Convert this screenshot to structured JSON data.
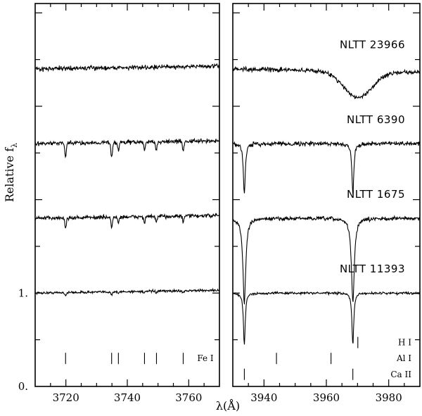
{
  "chart_data": {
    "type": "line",
    "xlabel": "λ(Å)",
    "ylabel": "Relative f_λ",
    "ylabel_main": "Relative f",
    "ylabel_sub": "λ",
    "ylim": [
      0,
      4.1
    ],
    "y_ticks": [
      {
        "value": 0,
        "label": "0."
      },
      {
        "value": 1,
        "label": "1."
      }
    ],
    "y_minor_ticks": [
      0.5,
      1.5,
      2.0,
      2.5,
      3.0,
      3.5,
      4.0
    ],
    "panels": [
      {
        "xlim": [
          3710,
          3770
        ],
        "x_ticks": [
          3720,
          3740,
          3760
        ],
        "x_tick_labels": [
          "3720",
          "3740",
          "3760"
        ],
        "x_minor_step": 5,
        "line_markers": [
          {
            "label": "Fe I",
            "y": 0.3,
            "wavelengths": [
              3719.9,
              3734.9,
              3737.1,
              3745.6,
              3749.5,
              3758.2
            ]
          }
        ]
      },
      {
        "xlim": [
          3930,
          3990
        ],
        "x_ticks": [
          3940,
          3960,
          3980
        ],
        "x_tick_labels": [
          "3940",
          "3960",
          "3980"
        ],
        "x_minor_step": 5,
        "line_markers": [
          {
            "label": "H I",
            "y": 0.47,
            "wavelengths": [
              3970.1
            ]
          },
          {
            "label": "Al I",
            "y": 0.3,
            "wavelengths": [
              3944.0,
              3961.5
            ]
          },
          {
            "label": "Ca II",
            "y": 0.13,
            "wavelengths": [
              3933.7,
              3968.5
            ]
          }
        ]
      }
    ],
    "series": [
      {
        "name": "NLTT 11393",
        "offset": 1.0,
        "continuum": 1.0,
        "fe_depth": 0.025,
        "ca_depth": 0.55,
        "ca_width": 0.35,
        "hydrogen_depth": 0,
        "noise": 0.012
      },
      {
        "name": "NLTT 1675",
        "offset": 1.8,
        "continuum": 1.8,
        "fe_depth": 0.09,
        "ca_depth": 0.9,
        "ca_width": 0.55,
        "hydrogen_depth": 0,
        "noise": 0.02
      },
      {
        "name": "NLTT 6390",
        "offset": 2.6,
        "continuum": 2.6,
        "fe_depth": 0.13,
        "ca_depth": 0.55,
        "ca_width": 0.35,
        "hydrogen_depth": 0,
        "noise": 0.022
      },
      {
        "name": "NLTT 23966",
        "offset": 3.4,
        "continuum": 3.4,
        "fe_depth": 0,
        "ca_depth": 0,
        "ca_width": 0.3,
        "hydrogen_depth": 0.28,
        "hydrogen_width": 4.5,
        "noise": 0.022
      }
    ],
    "grid": false,
    "legend": "none"
  }
}
